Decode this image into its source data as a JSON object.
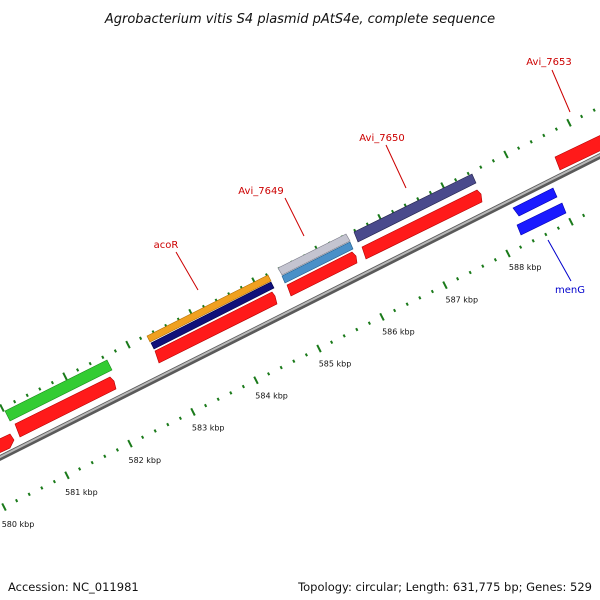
{
  "title": "Agrobacterium vitis S4 plasmid pAtS4e, complete sequence",
  "footer": {
    "accession": "Accession: NC_011981",
    "summary": "Topology: circular; Length: 631,775 bp; Genes: 529"
  },
  "colors": {
    "backbone": "#8c8c8c",
    "tick": "#1a7a1a",
    "label_red": "#cc0000",
    "label_blue": "#0000cc"
  },
  "genes": [
    {
      "name": "acoR",
      "color": "#cc0000"
    },
    {
      "name": "Avi_7649",
      "color": "#cc0000"
    },
    {
      "name": "Avi_7650",
      "color": "#cc0000"
    },
    {
      "name": "Avi_7653",
      "color": "#cc0000"
    },
    {
      "name": "menG",
      "color": "#0000cc"
    }
  ],
  "ruler": [
    {
      "label": "580 kbp"
    },
    {
      "label": "581 kbp"
    },
    {
      "label": "582 kbp"
    },
    {
      "label": "583 kbp"
    },
    {
      "label": "584 kbp"
    },
    {
      "label": "585 kbp"
    },
    {
      "label": "586 kbp"
    },
    {
      "label": "587 kbp"
    },
    {
      "label": "588 kbp"
    }
  ]
}
